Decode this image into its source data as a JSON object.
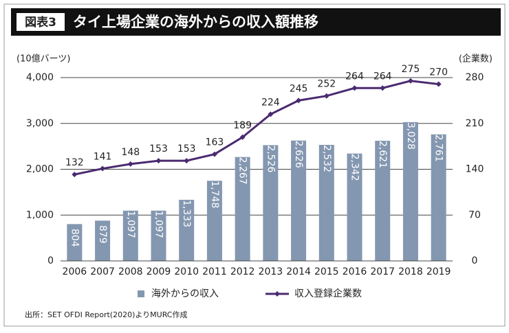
{
  "chart_data": {
    "type": "combo",
    "label": "図表3",
    "title": "タイ上場企業の海外からの収入額推移",
    "y_label": "(10億バーツ)",
    "y2_label": "(企業数)",
    "categories": [
      "2006",
      "2007",
      "2008",
      "2009",
      "2010",
      "2011",
      "2012",
      "2013",
      "2014",
      "2015",
      "2016",
      "2017",
      "2018",
      "2019"
    ],
    "series": [
      {
        "name": "海外からの収入",
        "type": "bar",
        "color": "#8497b0",
        "values": [
          804,
          879,
          1097,
          1097,
          1333,
          1748,
          2267,
          2526,
          2626,
          2532,
          2342,
          2621,
          3028,
          2761
        ],
        "value_labels": [
          "804",
          "879",
          "1,097",
          "1,097",
          "1,333",
          "1,748",
          "2,267",
          "2,526",
          "2,626",
          "2,532",
          "2,342",
          "2,621",
          "3,028",
          "2,761"
        ]
      },
      {
        "name": "収入登録企業数",
        "type": "line",
        "axis": "y2",
        "color": "#4b2a70",
        "values": [
          132,
          141,
          148,
          153,
          153,
          163,
          189,
          224,
          245,
          252,
          264,
          264,
          275,
          270
        ]
      }
    ],
    "ylim": [
      0,
      4000
    ],
    "yticks": [
      0,
      {
        "value": 1000,
        "label": "1,000"
      },
      {
        "value": 2000,
        "label": "2,000"
      },
      {
        "value": 3000,
        "label": "3,000"
      },
      {
        "value": 4000,
        "label": "4,000"
      }
    ],
    "y2lim": [
      0,
      280
    ],
    "y2ticks": [
      0,
      70,
      140,
      210,
      280
    ],
    "grid": true,
    "source": "出所：SET OFDI Report(2020)よりMURC作成"
  }
}
